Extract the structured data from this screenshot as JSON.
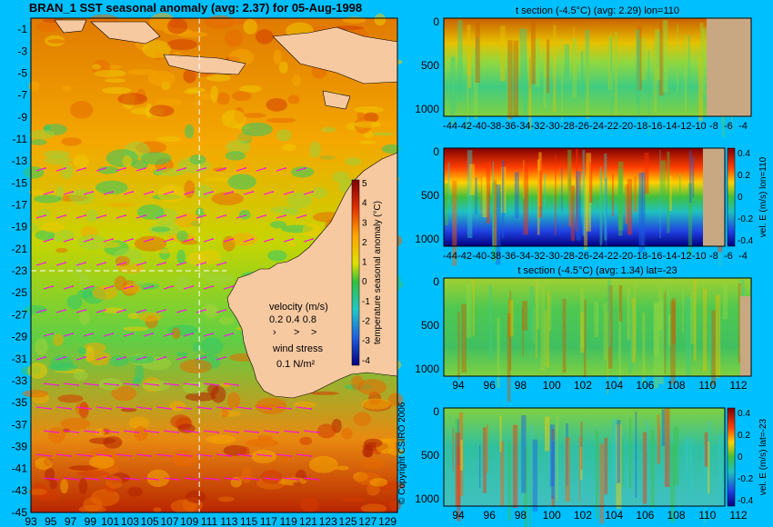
{
  "chart_data": [
    {
      "type": "heatmap",
      "title": "BRAN_1 SST seasonal anomaly (avg: 2.37) for 05-Aug-1998",
      "xlabel": "",
      "ylabel": "",
      "x_ticks": [
        "93",
        "95",
        "97",
        "99",
        "101",
        "103",
        "105",
        "107",
        "109",
        "111",
        "113",
        "115",
        "117",
        "119",
        "121",
        "123",
        "125",
        "127",
        "129"
      ],
      "y_ticks": [
        "-1",
        "-3",
        "-5",
        "-7",
        "-9",
        "-11",
        "-13",
        "-15",
        "-17",
        "-19",
        "-21",
        "-23",
        "-25",
        "-27",
        "-29",
        "-31",
        "-33",
        "-35",
        "-37",
        "-39",
        "-41",
        "-43",
        "-45"
      ],
      "xlim": [
        93,
        130
      ],
      "ylim": [
        -45,
        0
      ],
      "section_lines": {
        "lon": 110,
        "lat": -23
      },
      "colorbar": {
        "label": "temperature seasonal anomaly (°C)",
        "ticks": [
          "5",
          "4",
          "3",
          "2",
          "1",
          "0",
          "-1",
          "-2",
          "-3",
          "-4"
        ],
        "range": [
          -4,
          5
        ]
      },
      "velocity_legend": {
        "title": "velocity (m/s)",
        "values": "0.2 0.4 0.8"
      },
      "wind_legend": {
        "title": "wind stress",
        "value": "0.1 N/m²"
      },
      "colors": {
        "land": "#f7c9a0",
        "ocean_high": "#d43a00",
        "ocean_mid": "#f5a800",
        "ocean_low": "#2fc96a",
        "arrow": "#ff00ff"
      }
    },
    {
      "type": "heatmap",
      "title": "t section (-4.5°C) (avg: 2.29) lon=110",
      "x_ticks": [
        "-44",
        "-42",
        "-40",
        "-38",
        "-36",
        "-34",
        "-32",
        "-30",
        "-28",
        "-26",
        "-24",
        "-22",
        "-20",
        "-18",
        "-16",
        "-14",
        "-12",
        "-10",
        "-8",
        "-6",
        "-4"
      ],
      "y_ticks": [
        "0",
        "500",
        "1000"
      ],
      "ylim": [
        1050,
        0
      ],
      "xlim": [
        -45,
        -3
      ]
    },
    {
      "type": "heatmap",
      "title": "",
      "x_ticks": [
        "-44",
        "-42",
        "-40",
        "-38",
        "-36",
        "-34",
        "-32",
        "-30",
        "-28",
        "-26",
        "-24",
        "-22",
        "-20",
        "-18",
        "-16",
        "-14",
        "-12",
        "-10",
        "-8",
        "-6",
        "-4"
      ],
      "y_ticks": [
        "0",
        "500",
        "1000"
      ],
      "colorbar": {
        "label": "vel. E (m/s) lon=110",
        "ticks": [
          "0.4",
          "0.2",
          "0",
          "-0.2",
          "-0.4"
        ]
      }
    },
    {
      "type": "heatmap",
      "title": "t section (-4.5°C) (avg: 1.34) lat=-23",
      "x_ticks": [
        "94",
        "96",
        "98",
        "100",
        "102",
        "104",
        "106",
        "108",
        "110",
        "112"
      ],
      "y_ticks": [
        "0",
        "500",
        "1000"
      ],
      "xlim": [
        93,
        114
      ]
    },
    {
      "type": "heatmap",
      "title": "",
      "x_ticks": [
        "94",
        "96",
        "98",
        "100",
        "102",
        "104",
        "106",
        "108",
        "110",
        "112"
      ],
      "y_ticks": [
        "0",
        "500",
        "1000"
      ],
      "colorbar": {
        "label": "vel. E (m/s) lat=-23",
        "ticks": [
          "0.4",
          "0.2",
          "0",
          "-0.2",
          "-0.4"
        ]
      }
    }
  ],
  "copyright": "© Copyright CSIRO 2006"
}
